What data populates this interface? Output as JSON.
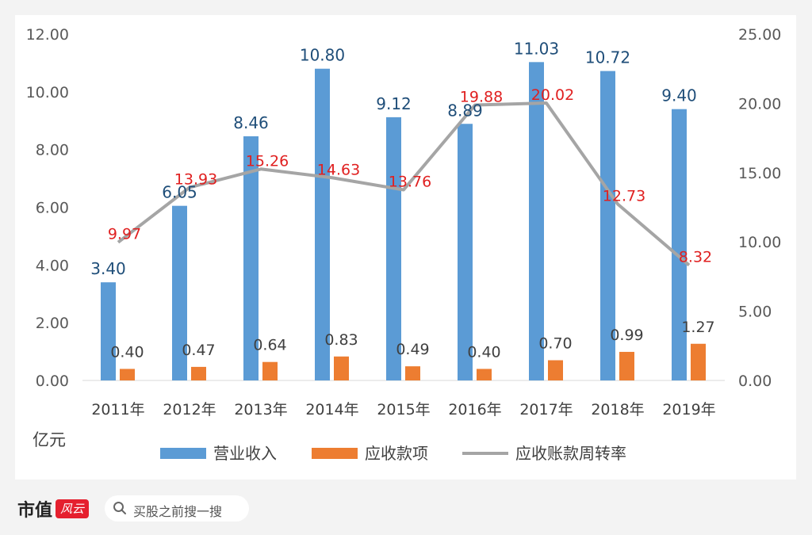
{
  "chart_data": {
    "type": "bar+line",
    "categories": [
      "2011年",
      "2012年",
      "2013年",
      "2014年",
      "2015年",
      "2016年",
      "2017年",
      "2018年",
      "2019年"
    ],
    "series": [
      {
        "name": "营业收入",
        "type": "bar",
        "axis": "left",
        "color": "#5b9bd5",
        "values": [
          3.4,
          6.05,
          8.46,
          10.8,
          9.12,
          8.89,
          11.03,
          10.72,
          9.4
        ],
        "labels": [
          "3.40",
          "6.05",
          "8.46",
          "10.80",
          "9.12",
          "8.89",
          "11.03",
          "10.72",
          "9.40"
        ]
      },
      {
        "name": "应收款项",
        "type": "bar",
        "axis": "left",
        "color": "#ed7d31",
        "values": [
          0.4,
          0.47,
          0.64,
          0.83,
          0.49,
          0.4,
          0.7,
          0.99,
          1.27
        ],
        "labels": [
          "0.40",
          "0.47",
          "0.64",
          "0.83",
          "0.49",
          "0.40",
          "0.70",
          "0.99",
          "1.27"
        ]
      },
      {
        "name": "应收账款周转率",
        "type": "line",
        "axis": "right",
        "color": "#a5a5a5",
        "values": [
          9.97,
          13.93,
          15.26,
          14.63,
          13.76,
          19.88,
          20.02,
          12.73,
          8.32
        ],
        "labels": [
          "9.97",
          "13.93",
          "15.26",
          "14.63",
          "13.76",
          "19.88",
          "20.02",
          "12.73",
          "8.32"
        ]
      }
    ],
    "y_left": {
      "range": [
        0,
        12
      ],
      "ticks": [
        "0.00",
        "2.00",
        "4.00",
        "6.00",
        "8.00",
        "10.00",
        "12.00"
      ]
    },
    "y_right": {
      "range": [
        0,
        25
      ],
      "ticks": [
        "0.00",
        "5.00",
        "10.00",
        "15.00",
        "20.00",
        "25.00"
      ]
    },
    "unit_label": "亿元",
    "legend_position": "bottom",
    "grid": false,
    "colors": {
      "revenue_label": "#1f4e79",
      "ratio_label": "#e02020",
      "receivable_label": "#404040"
    }
  },
  "footer": {
    "brand": "市值",
    "brand_seal": "风云",
    "search_placeholder": "买股之前搜一搜"
  }
}
